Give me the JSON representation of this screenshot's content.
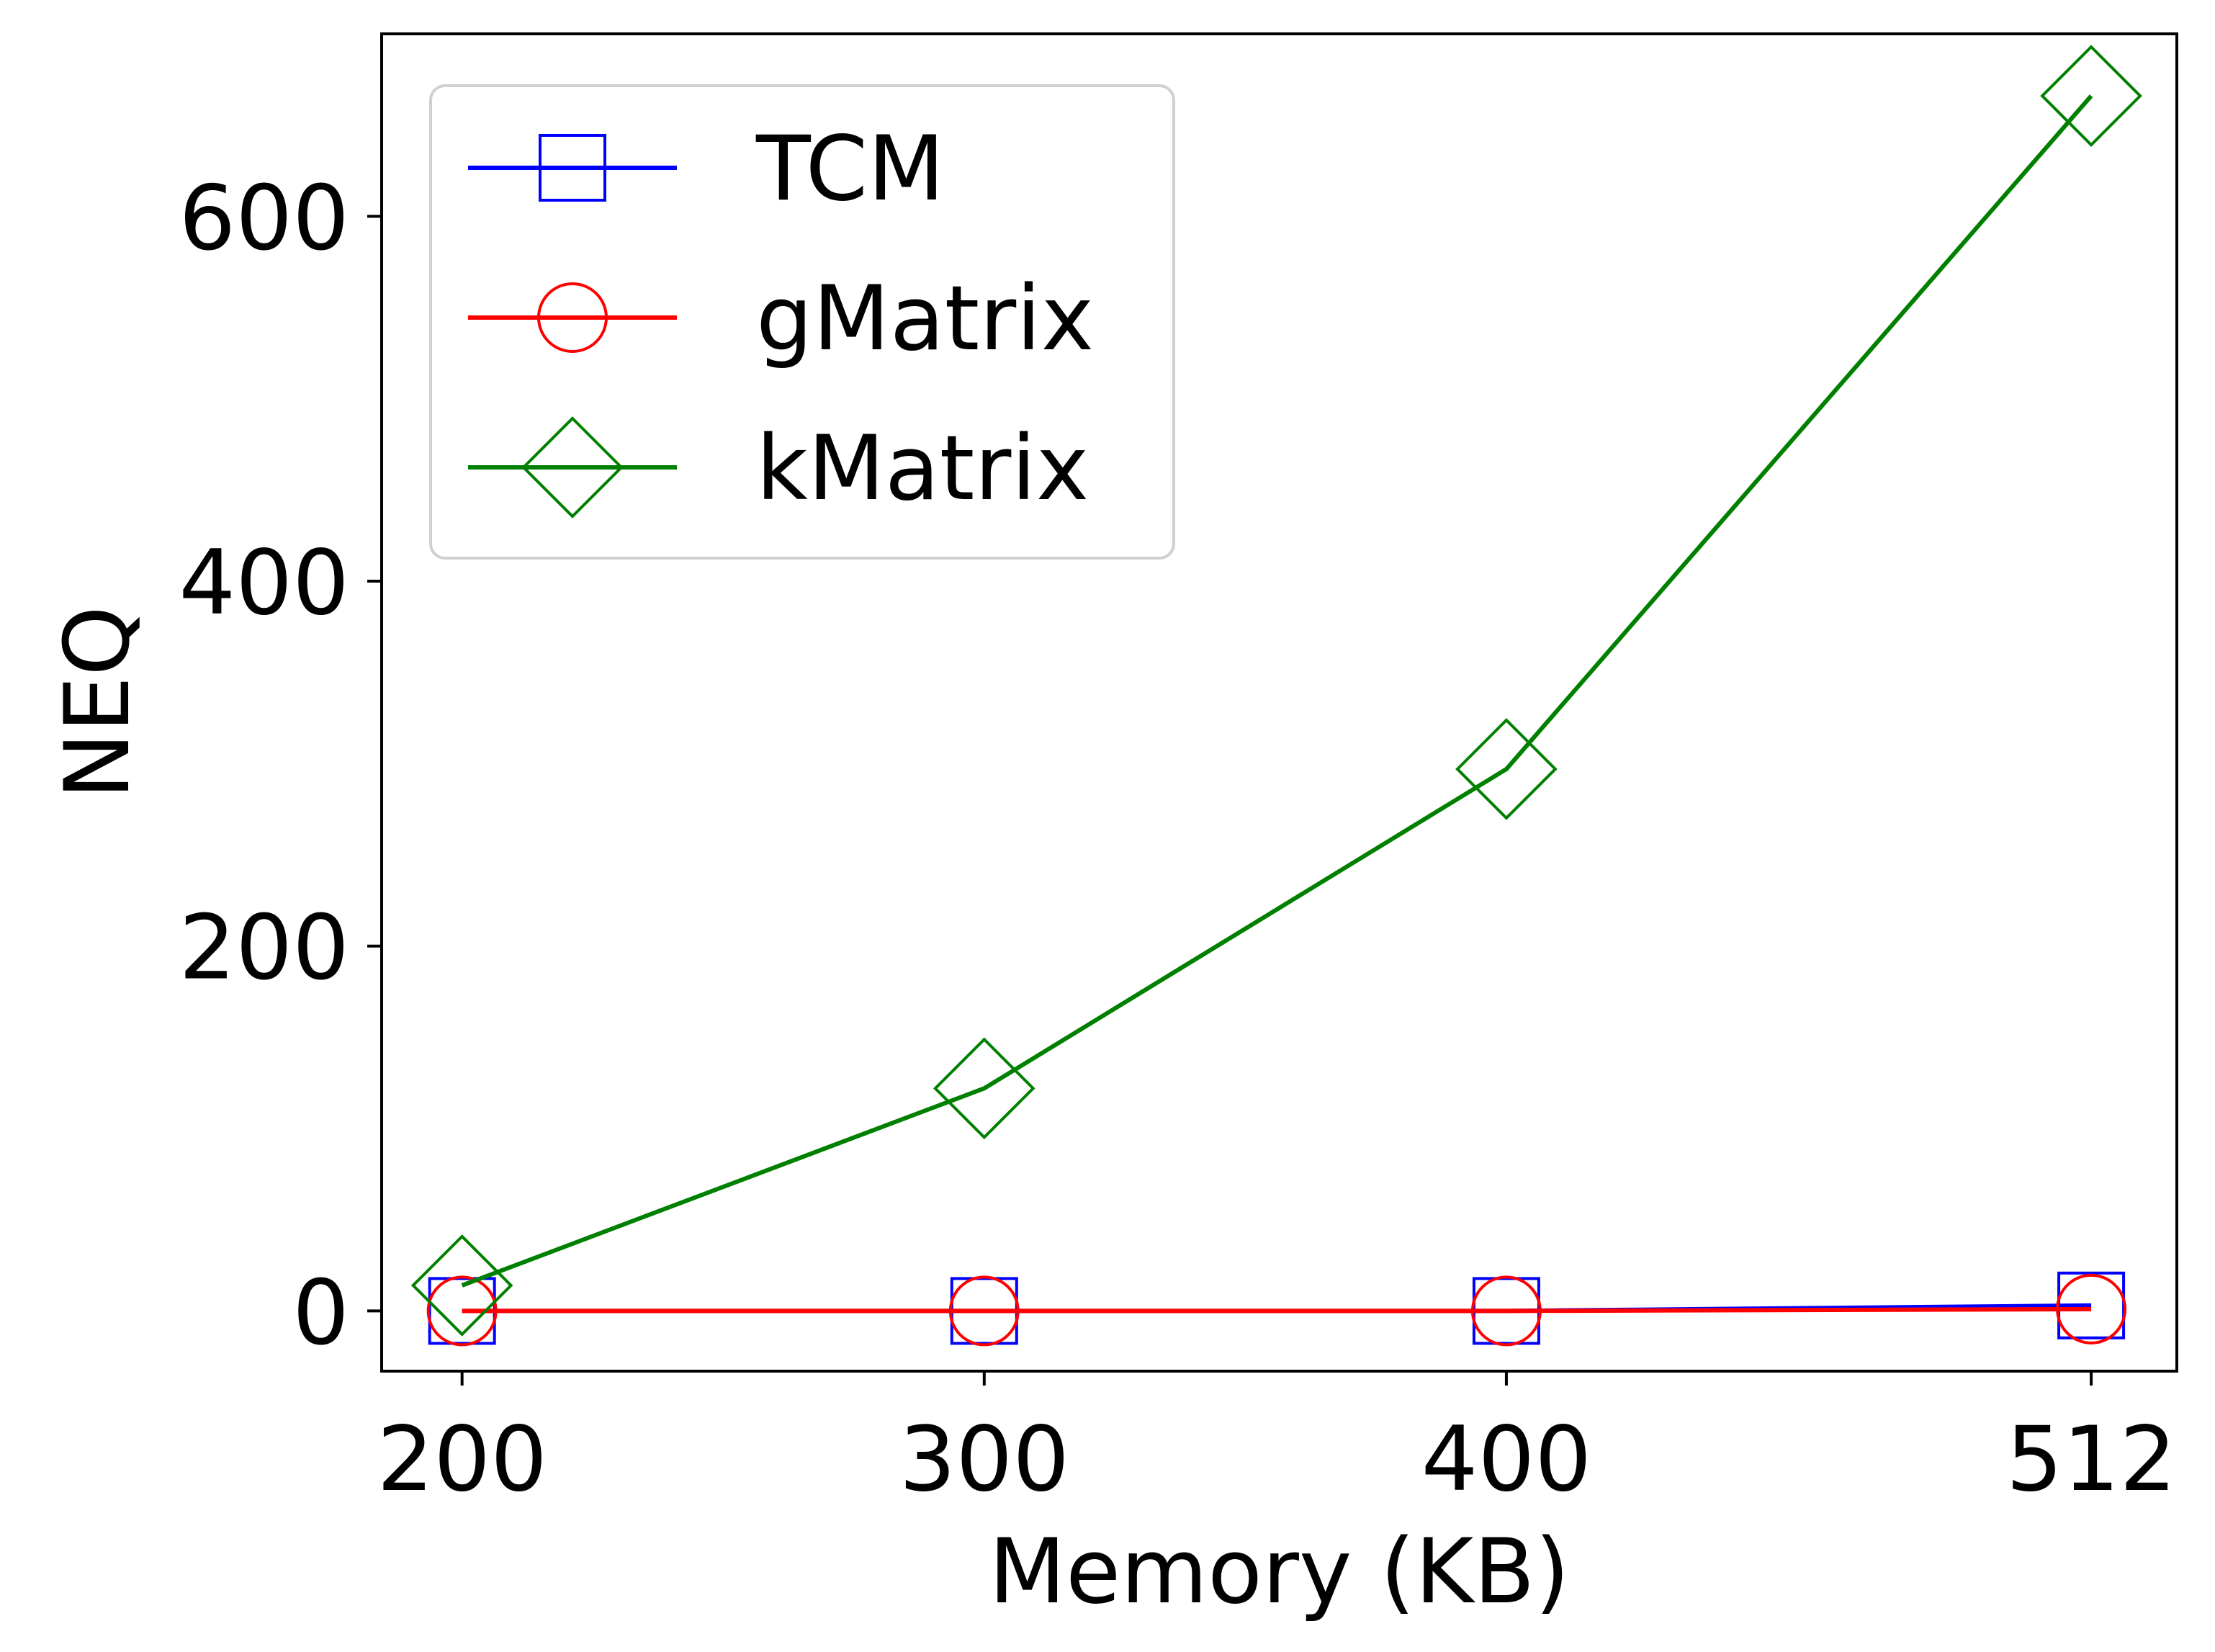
{
  "chart_data": {
    "type": "line",
    "x": [
      200,
      300,
      400,
      512
    ],
    "xticks": [
      "200",
      "300",
      "400",
      "512"
    ],
    "yticks": [
      "0",
      "200",
      "400",
      "600"
    ],
    "xlabel": "Memory (KB)",
    "ylabel": "NEQ",
    "xlim": [
      184.6,
      528.4
    ],
    "ylim": [
      -33,
      700
    ],
    "grid": false,
    "legend_position": "top-left",
    "series": [
      {
        "name": "TCM",
        "color": "#0000ff",
        "marker": "square",
        "values": [
          0,
          0,
          0,
          3
        ]
      },
      {
        "name": "gMatrix",
        "color": "#ff0000",
        "marker": "circle",
        "values": [
          0,
          0,
          0,
          1
        ]
      },
      {
        "name": "kMatrix",
        "color": "#008000",
        "marker": "diamond",
        "values": [
          14,
          122,
          297,
          666
        ]
      }
    ]
  }
}
